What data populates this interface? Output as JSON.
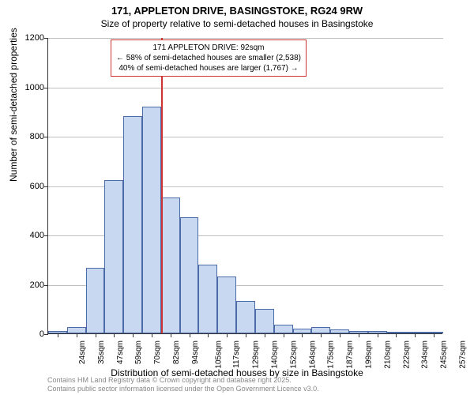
{
  "title": "171, APPLETON DRIVE, BASINGSTOKE, RG24 9RW",
  "subtitle": "Size of property relative to semi-detached houses in Basingstoke",
  "ylabel": "Number of semi-detached properties",
  "xlabel": "Distribution of semi-detached houses by size in Basingstoke",
  "chart": {
    "type": "histogram",
    "ylim": [
      0,
      1200
    ],
    "ytick_step": 200,
    "yticks": [
      0,
      200,
      400,
      600,
      800,
      1000,
      1200
    ],
    "categories": [
      "24sqm",
      "35sqm",
      "47sqm",
      "59sqm",
      "70sqm",
      "82sqm",
      "94sqm",
      "105sqm",
      "117sqm",
      "129sqm",
      "140sqm",
      "152sqm",
      "164sqm",
      "175sqm",
      "187sqm",
      "199sqm",
      "210sqm",
      "222sqm",
      "234sqm",
      "245sqm",
      "257sqm"
    ],
    "values": [
      10,
      25,
      265,
      620,
      880,
      920,
      550,
      470,
      280,
      230,
      130,
      100,
      35,
      20,
      25,
      15,
      10,
      10,
      5,
      5,
      5
    ],
    "bar_fill": "#c8d8f0",
    "bar_border": "#4a6aa8",
    "background_color": "#ffffff",
    "grid_color": "#c0c0c0",
    "axis_color": "#333333",
    "label_fontsize": 12,
    "tick_fontsize": 10,
    "bar_width_ratio": 1.0,
    "marker_line": {
      "position_category_index": 6,
      "color": "#cc3333"
    }
  },
  "annotation": {
    "line1": "171 APPLETON DRIVE: 92sqm",
    "line2": "← 58% of semi-detached houses are smaller (2,538)",
    "line3": "40% of semi-detached houses are larger (1,767) →",
    "border_color": "#cc3333",
    "background": "#ffffff"
  },
  "attribution": {
    "line1": "Contains HM Land Registry data © Crown copyright and database right 2025.",
    "line2": "Contains public sector information licensed under the Open Government Licence v3.0."
  }
}
